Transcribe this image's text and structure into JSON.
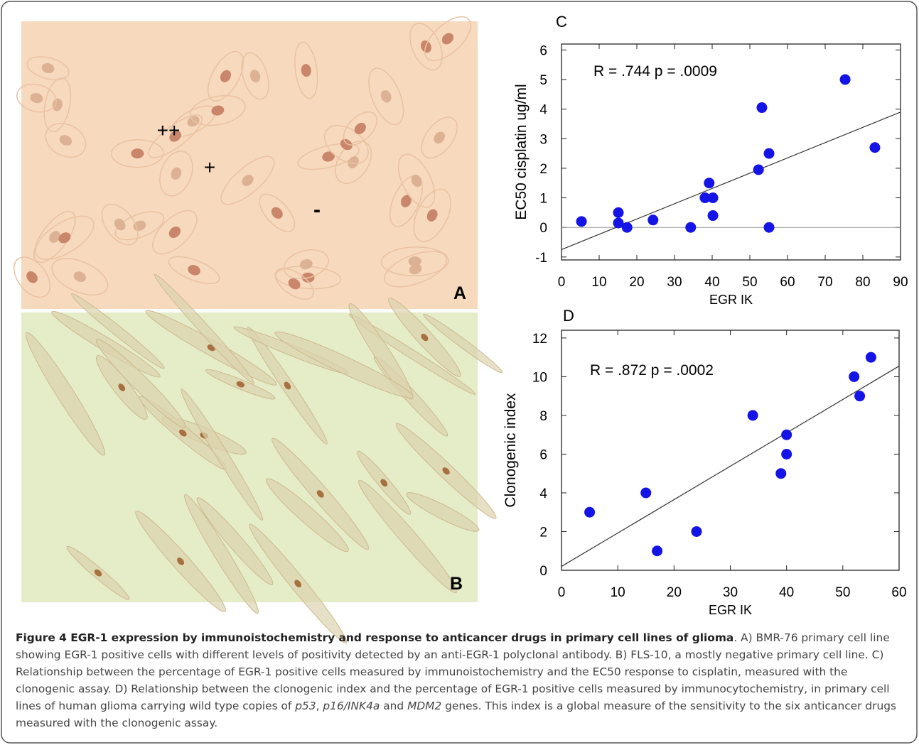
{
  "panels": {
    "A": {
      "label": "A",
      "marks": [
        "++",
        "+",
        "-"
      ]
    },
    "B": {
      "label": "B"
    }
  },
  "chart_data": [
    {
      "type": "scatter",
      "title": "C",
      "annotation": "R = .744 p = .0009",
      "x_label": "EGR IK",
      "y_label": "EC50  cisplatin ug/ml",
      "x": [
        5.3,
        15.1,
        15.1,
        17.4,
        24.3,
        34.3,
        38.1,
        40.2,
        39.2,
        40.2,
        52.3,
        53.2,
        55.1,
        55.1,
        75.3,
        83.2
      ],
      "values": [
        0.2,
        0.5,
        0.15,
        0.0,
        0.25,
        0.0,
        1.0,
        1.0,
        1.5,
        0.4,
        1.95,
        4.05,
        2.5,
        0.0,
        5.0,
        2.7
      ],
      "color": "#1414e6",
      "trend_line": {
        "x": [
          0,
          90
        ],
        "values": [
          -0.75,
          3.9
        ]
      },
      "reference_line": 0,
      "xlim": [
        0,
        90
      ],
      "xticks": [
        0,
        10,
        20,
        30,
        40,
        50,
        60,
        70,
        80,
        90
      ],
      "ylim": [
        -1.1,
        6.2
      ],
      "yticks": [
        -1,
        0,
        1,
        2,
        3,
        4,
        5,
        6
      ]
    },
    {
      "type": "scatter",
      "title": "D",
      "annotation": "R = .872 p = .0002",
      "x_label": "EGR IK",
      "y_label": "Clonogenic index",
      "x": [
        5,
        15,
        17,
        24,
        34,
        39,
        40,
        40,
        52,
        53,
        55
      ],
      "values": [
        3,
        4,
        1,
        2,
        8,
        5,
        6,
        7,
        10,
        9,
        11
      ],
      "color": "#1414e6",
      "trend_line": {
        "x": [
          0,
          60
        ],
        "values": [
          0.2,
          10.55
        ]
      },
      "xlim": [
        0,
        60
      ],
      "xticks": [
        0,
        10,
        20,
        30,
        40,
        50,
        60
      ],
      "ylim": [
        0,
        12.4
      ],
      "yticks": [
        0,
        2,
        4,
        6,
        8,
        10,
        12
      ]
    }
  ],
  "caption": {
    "parts": [
      {
        "text": "Figure 4 EGR-1 expression by immunoistochemistry and response to anticancer drugs in primary cell lines of glioma",
        "style": "bold"
      },
      {
        "text": ". A) BMR-76 primary cell line showing EGR-1 positive cells with different levels of positivity detected by an anti-EGR-1 polyclonal antibody. B) FLS-10, a mostly negative primary cell line. C) Relationship between the percentage of EGR-1 positive cells measured by immunoistochemistry and the EC50 response to cisplatin, measured with the clonogenic assay. D) Relationship between the clonogenic index and the percentage of EGR-1 positive cells measured by immunocytochemistry, in primary cell lines of human glioma carrying wild type copies of ",
        "style": "normal"
      },
      {
        "text": "p53",
        "style": "italic"
      },
      {
        "text": ", ",
        "style": "normal"
      },
      {
        "text": "p16/INK4a",
        "style": "italic"
      },
      {
        "text": " and ",
        "style": "normal"
      },
      {
        "text": "MDM2",
        "style": "italic"
      },
      {
        "text": " genes. This index is a global measure of the sensitivity to the six anticancer drugs measured with the clonogenic assay.",
        "style": "normal"
      }
    ]
  }
}
